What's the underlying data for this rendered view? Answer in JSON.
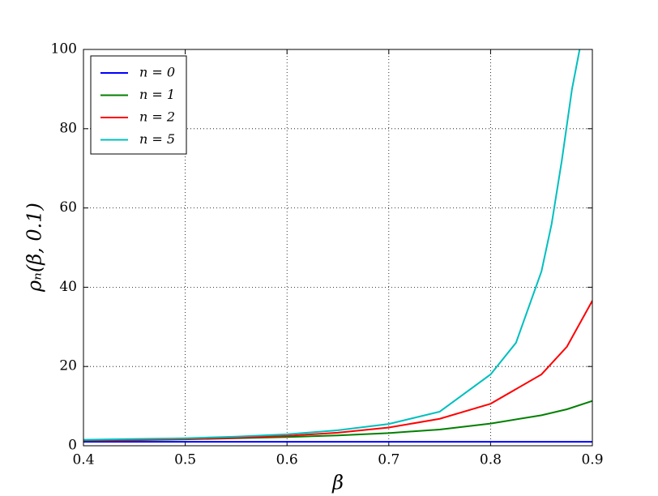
{
  "chart_data": {
    "type": "line",
    "xlabel": "β",
    "ylabel": "ρₙ(β, 0.1)",
    "xlim": [
      0.4,
      0.9
    ],
    "ylim": [
      0,
      100
    ],
    "xticks": [
      0.4,
      0.5,
      0.6,
      0.7,
      0.8,
      0.9
    ],
    "yticks": [
      0,
      20,
      40,
      60,
      80,
      100
    ],
    "grid": true,
    "legend": "upper left",
    "series": [
      {
        "name": "n = 0",
        "color": "#0000ff",
        "x": [
          0.4,
          0.45,
          0.5,
          0.55,
          0.6,
          0.65,
          0.7,
          0.75,
          0.8,
          0.85,
          0.875,
          0.9
        ],
        "values": [
          1,
          1,
          1,
          1,
          1,
          1,
          1,
          1,
          1,
          1,
          1,
          1
        ]
      },
      {
        "name": "n = 1",
        "color": "#008000",
        "x": [
          0.4,
          0.45,
          0.5,
          0.55,
          0.6,
          0.65,
          0.7,
          0.75,
          0.8,
          0.85,
          0.875,
          0.9
        ],
        "values": [
          1.3,
          1.4,
          1.6,
          1.9,
          2.2,
          2.6,
          3.2,
          4.1,
          5.6,
          7.7,
          9.2,
          11.3
        ]
      },
      {
        "name": "n = 2",
        "color": "#ff0000",
        "x": [
          0.4,
          0.45,
          0.5,
          0.55,
          0.6,
          0.65,
          0.7,
          0.75,
          0.8,
          0.85,
          0.875,
          0.9
        ],
        "values": [
          1.4,
          1.5,
          1.7,
          2.0,
          2.5,
          3.3,
          4.6,
          6.8,
          10.6,
          18,
          25,
          36.6
        ]
      },
      {
        "name": "n = 5",
        "color": "#00bfbf",
        "x": [
          0.4,
          0.45,
          0.5,
          0.55,
          0.6,
          0.65,
          0.7,
          0.75,
          0.8,
          0.825,
          0.85,
          0.86,
          0.87,
          0.88,
          0.8875
        ],
        "values": [
          1.5,
          1.7,
          1.9,
          2.3,
          2.9,
          3.9,
          5.5,
          8.6,
          18,
          26,
          44,
          56,
          72,
          90,
          100
        ]
      }
    ]
  }
}
